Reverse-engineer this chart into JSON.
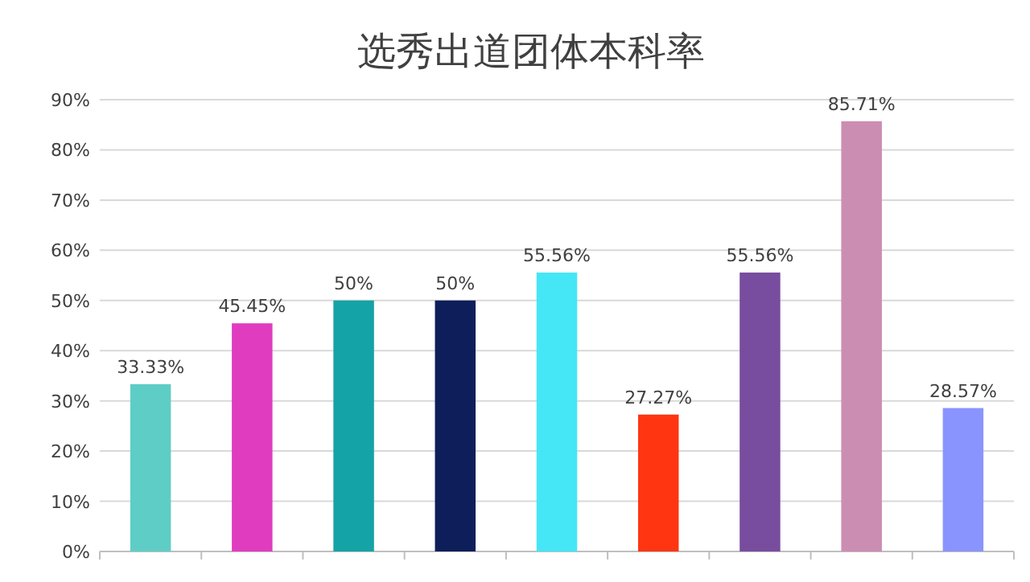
{
  "chart_data": {
    "type": "bar",
    "title": "选秀出道团体本科率",
    "categories": [
      null,
      null,
      null,
      null,
      null,
      null,
      null,
      null,
      null
    ],
    "values": [
      33.33,
      45.45,
      50,
      50,
      55.56,
      27.27,
      55.56,
      85.71,
      28.57
    ],
    "colors": [
      "#5ecdc6",
      "#e03cbf",
      "#14a3a6",
      "#0e1e5a",
      "#45e6f6",
      "#ff3512",
      "#784c9e",
      "#cc8db2",
      "#8a94ff"
    ],
    "value_labels": [
      "33.33%",
      "45.45%",
      "50%",
      "50%",
      "55.56%",
      "27.27%",
      "55.56%",
      "85.71%",
      "28.57%"
    ],
    "ylim": [
      0,
      90
    ],
    "yticks": [
      {
        "value": 0,
        "label": "0%"
      },
      {
        "value": 10,
        "label": "10%"
      },
      {
        "value": 20,
        "label": "20%"
      },
      {
        "value": 30,
        "label": "30%"
      },
      {
        "value": 40,
        "label": "40%"
      },
      {
        "value": 50,
        "label": "50%"
      },
      {
        "value": 60,
        "label": "60%"
      },
      {
        "value": 70,
        "label": "70%"
      },
      {
        "value": 80,
        "label": "80%"
      },
      {
        "value": 90,
        "label": "90%"
      }
    ],
    "grid": "y"
  }
}
